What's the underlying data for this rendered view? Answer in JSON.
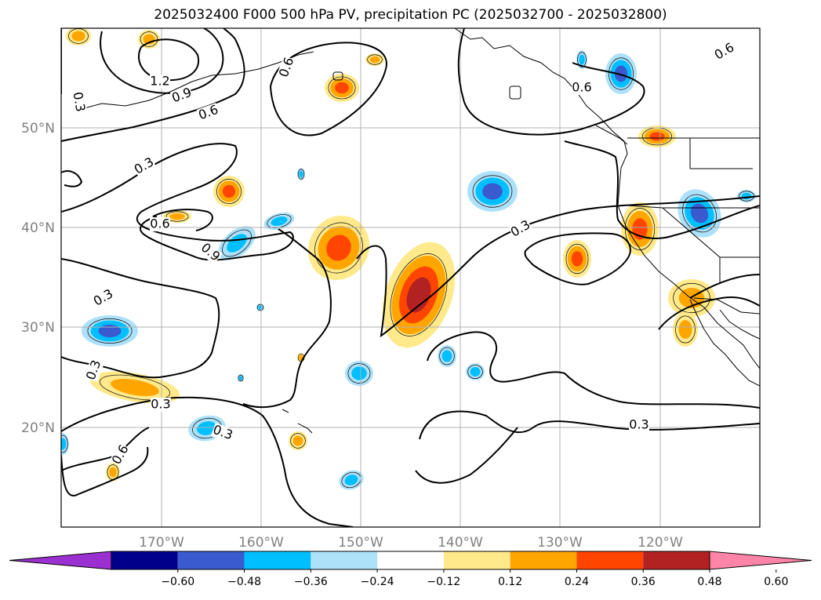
{
  "title": "2025032400 F000 500 hPa PV, precipitation PC (2025032700 - 2025032800)",
  "map": {
    "lat_labels": [
      "50°N",
      "40°N",
      "30°N",
      "20°N"
    ],
    "lon_labels": [
      "170°W",
      "160°W",
      "150°W",
      "140°W",
      "130°W",
      "120°W"
    ],
    "contour_labels": [
      "0.6",
      "1.2",
      "0.9",
      "0.6",
      "0.6",
      "0.6",
      "0.3",
      "0.6",
      "0.9",
      "0.3",
      "0.3",
      "0.3",
      "0.3",
      "0.3",
      "0.6",
      "0.3",
      "0.3"
    ]
  },
  "colorbar": {
    "ticks": [
      "−0.60",
      "−0.48",
      "−0.36",
      "−0.24",
      "−0.12",
      "0.12",
      "0.24",
      "0.36",
      "0.48",
      "0.60"
    ],
    "colors": [
      "#9b30d0",
      "#00008b",
      "#3a5bd0",
      "#00bfff",
      "#ade1fa",
      "#ffffff",
      "#ffe98a",
      "#ffa500",
      "#ff4500",
      "#b22222",
      "#ff85a8"
    ]
  },
  "palette": {
    "pos1": "#ffe98a",
    "pos2": "#ffa500",
    "pos3": "#ff4500",
    "pos4": "#b22222",
    "neg1": "#ade1fa",
    "neg2": "#00bfff",
    "neg3": "#3a5bd0"
  }
}
